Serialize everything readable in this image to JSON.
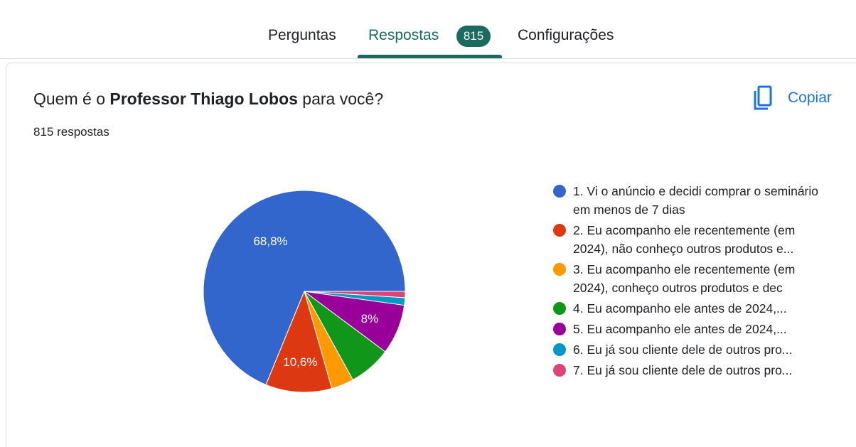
{
  "tabs": {
    "perguntas": "Perguntas",
    "respostas": "Respostas",
    "respostas_badge": "815",
    "configuracoes": "Configurações"
  },
  "question": {
    "prefix": "Quem é o ",
    "bold": "Professor Thiago Lobos",
    "suffix": " para você?",
    "response_count": "815 respostas"
  },
  "copy_button": {
    "label": "Copiar",
    "icon": "copy-icon"
  },
  "colors": {
    "accent": "#1a6b5e",
    "link": "#1a73e8"
  },
  "chart_data": {
    "type": "pie",
    "categories": [
      "1. Vi o anúncio e decidi comprar o seminário em menos de 7 dias",
      "2. Eu acompanho ele recentemente (em 2024), não conheço outros produtos e...",
      "3. Eu acompanho ele recentemente (em 2024), conheço outros produtos e dec",
      "4. Eu acompanho ele antes de 2024,...",
      "5. Eu acompanho ele antes de 2024,...",
      "6. Eu já sou cliente dele de outros pro...",
      "7. Eu já sou cliente dele de outros pro..."
    ],
    "values": [
      68.8,
      10.6,
      3.6,
      6.8,
      8.0,
      1.2,
      1.0
    ],
    "data_labels": [
      "68,8%",
      "10,6%",
      "",
      "",
      "8%",
      "",
      ""
    ],
    "colors": [
      "#3366cc",
      "#dc3912",
      "#ff9900",
      "#109618",
      "#990099",
      "#0099c6",
      "#dd4477"
    ],
    "start_angle_deg": 90,
    "direction": "counterclockwise",
    "legend_position": "right"
  }
}
